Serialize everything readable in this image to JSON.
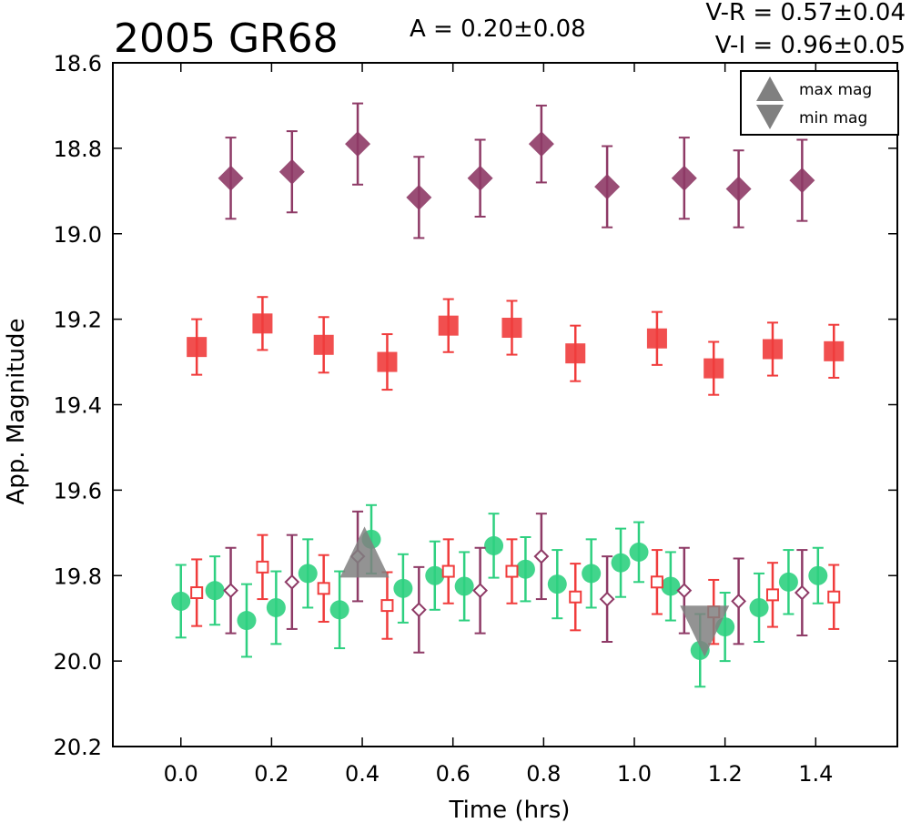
{
  "title": "2005 GR68",
  "amplitude_text": "A  = 0.20±0.08",
  "color_vr_text": "V-R = 0.57±0.04",
  "color_vi_text": "V-I  = 0.96±0.05",
  "chart_data": {
    "type": "scatter",
    "title": "2005 GR68",
    "xlabel": "Time (hrs)",
    "ylabel": "App. Magnitude",
    "xlim": [
      -0.15,
      1.58
    ],
    "ylim": [
      20.2,
      18.6
    ],
    "y_inverted": true,
    "grid": false,
    "x_ticks": [
      "0.0",
      "0.2",
      "0.4",
      "0.6",
      "0.8",
      "1.0",
      "1.2",
      "1.4"
    ],
    "y_ticks": [
      "18.6",
      "18.8",
      "19.0",
      "19.2",
      "19.4",
      "19.6",
      "19.8",
      "20.0",
      "20.2"
    ],
    "legend_position": "top-right",
    "legend": [
      {
        "label": "max mag",
        "marker": "triangle-up",
        "color": "#808080"
      },
      {
        "label": "min mag",
        "marker": "triangle-down",
        "color": "#808080"
      }
    ],
    "series": [
      {
        "marker": "diamond-filled",
        "color": "#8e3a66",
        "x": [
          0.11,
          0.245,
          0.39,
          0.525,
          0.66,
          0.795,
          0.94,
          1.11,
          1.23,
          1.37
        ],
        "y": [
          18.87,
          18.855,
          18.79,
          18.915,
          18.87,
          18.79,
          18.89,
          18.87,
          18.895,
          18.875
        ],
        "err": [
          0.095,
          0.095,
          0.095,
          0.095,
          0.09,
          0.09,
          0.095,
          0.095,
          0.09,
          0.095
        ]
      },
      {
        "marker": "square-filled",
        "color": "#f03c3c",
        "x": [
          0.035,
          0.18,
          0.315,
          0.455,
          0.59,
          0.73,
          0.87,
          1.05,
          1.175,
          1.305,
          1.44
        ],
        "y": [
          19.265,
          19.21,
          19.26,
          19.3,
          19.215,
          19.22,
          19.28,
          19.245,
          19.315,
          19.27,
          19.275
        ],
        "err": [
          0.065,
          0.062,
          0.065,
          0.065,
          0.062,
          0.063,
          0.065,
          0.062,
          0.062,
          0.062,
          0.062
        ]
      },
      {
        "marker": "circle-filled",
        "color": "#2ed080",
        "x": [
          0.0,
          0.075,
          0.145,
          0.21,
          0.28,
          0.35,
          0.42,
          0.49,
          0.56,
          0.625,
          0.69,
          0.76,
          0.83,
          0.905,
          0.97,
          1.01,
          1.08,
          1.145,
          1.2,
          1.275,
          1.34,
          1.405
        ],
        "y": [
          19.86,
          19.835,
          19.905,
          19.875,
          19.795,
          19.88,
          19.715,
          19.83,
          19.8,
          19.825,
          19.73,
          19.785,
          19.82,
          19.795,
          19.77,
          19.745,
          19.825,
          19.975,
          19.92,
          19.875,
          19.815,
          19.8
        ],
        "err": [
          0.085,
          0.08,
          0.085,
          0.085,
          0.08,
          0.09,
          0.08,
          0.08,
          0.08,
          0.08,
          0.075,
          0.075,
          0.08,
          0.08,
          0.08,
          0.07,
          0.08,
          0.085,
          0.08,
          0.08,
          0.075,
          0.065
        ]
      },
      {
        "marker": "square-open",
        "color": "#f03c3c",
        "x": [
          0.035,
          0.18,
          0.315,
          0.455,
          0.59,
          0.73,
          0.87,
          1.05,
          1.175,
          1.305,
          1.44
        ],
        "y": [
          19.84,
          19.78,
          19.83,
          19.87,
          19.79,
          19.79,
          19.85,
          19.815,
          19.885,
          19.845,
          19.85
        ],
        "err": [
          0.078,
          0.075,
          0.078,
          0.078,
          0.075,
          0.075,
          0.078,
          0.075,
          0.075,
          0.075,
          0.075
        ]
      },
      {
        "marker": "diamond-open",
        "color": "#8e3a66",
        "x": [
          0.11,
          0.245,
          0.39,
          0.525,
          0.66,
          0.795,
          0.94,
          1.11,
          1.23,
          1.37
        ],
        "y": [
          19.835,
          19.815,
          19.755,
          19.88,
          19.835,
          19.755,
          19.855,
          19.835,
          19.86,
          19.84
        ],
        "err": [
          0.1,
          0.11,
          0.105,
          0.1,
          0.1,
          0.1,
          0.1,
          0.1,
          0.1,
          0.1
        ]
      }
    ],
    "extrema": [
      {
        "label": "max mag",
        "marker": "triangle-up",
        "color": "#808080",
        "x": 0.405,
        "y": 19.745
      },
      {
        "label": "min mag",
        "marker": "triangle-down",
        "color": "#808080",
        "x": 1.155,
        "y": 19.93
      }
    ]
  }
}
